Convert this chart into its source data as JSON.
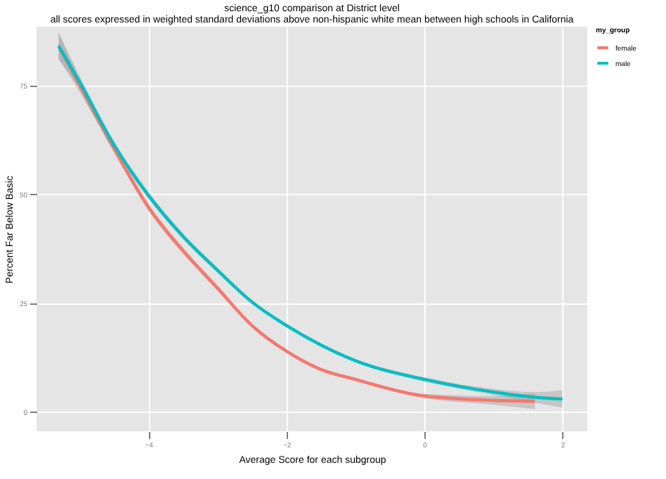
{
  "chart_data": {
    "type": "line",
    "title": "science_g10 comparison at District level",
    "subtitle": "all scores expressed in weighted standard deviations above non-hispanic white mean between high schools in California",
    "xlabel": "Average Score for each subgroup",
    "ylabel": "Percent Far Below Basic",
    "legend_title": "my_group",
    "legend": "right",
    "grid": true,
    "x": [
      -5.3,
      -5,
      -4.5,
      -4,
      -3.5,
      -3,
      -2.5,
      -2,
      -1.5,
      -1,
      0,
      1,
      1.6,
      2
    ],
    "series": [
      {
        "name": "female",
        "color": "#f8766d",
        "values": [
          84,
          75,
          60.5,
          47,
          37,
          28.4,
          19.8,
          13.9,
          9.7,
          7.4,
          3.6,
          2.6,
          2.4,
          null
        ],
        "lower": [
          81,
          73.5,
          59.5,
          46.2,
          36.3,
          27.8,
          19.3,
          13.5,
          9.3,
          7,
          3.1,
          1.6,
          0.6,
          null
        ],
        "upper": [
          87,
          76.5,
          61.5,
          47.8,
          37.7,
          29,
          20.3,
          14.3,
          10.1,
          7.8,
          4.1,
          3.6,
          4.2,
          null
        ]
      },
      {
        "name": "male",
        "color": "#00bfc4",
        "values": [
          84,
          75.8,
          61.3,
          49.7,
          40.3,
          32.5,
          25.2,
          19.8,
          15.3,
          11.7,
          7.4,
          4.5,
          3.3,
          2.9
        ],
        "lower": [
          81,
          74.3,
          60.3,
          48.9,
          39.6,
          31.9,
          24.7,
          19.4,
          14.9,
          11.3,
          6.9,
          3.8,
          2.1,
          0.9
        ],
        "upper": [
          87,
          77.3,
          62.3,
          50.5,
          41,
          33.1,
          25.7,
          20.2,
          15.7,
          12.1,
          7.9,
          5.2,
          4.5,
          4.9
        ]
      }
    ],
    "xlim": [
      -5.62,
      2.36
    ],
    "ylim": [
      -4.5,
      88.4
    ],
    "xticks": [
      -4,
      -2,
      0,
      2
    ],
    "yticks": [
      0,
      25,
      50,
      75
    ]
  }
}
